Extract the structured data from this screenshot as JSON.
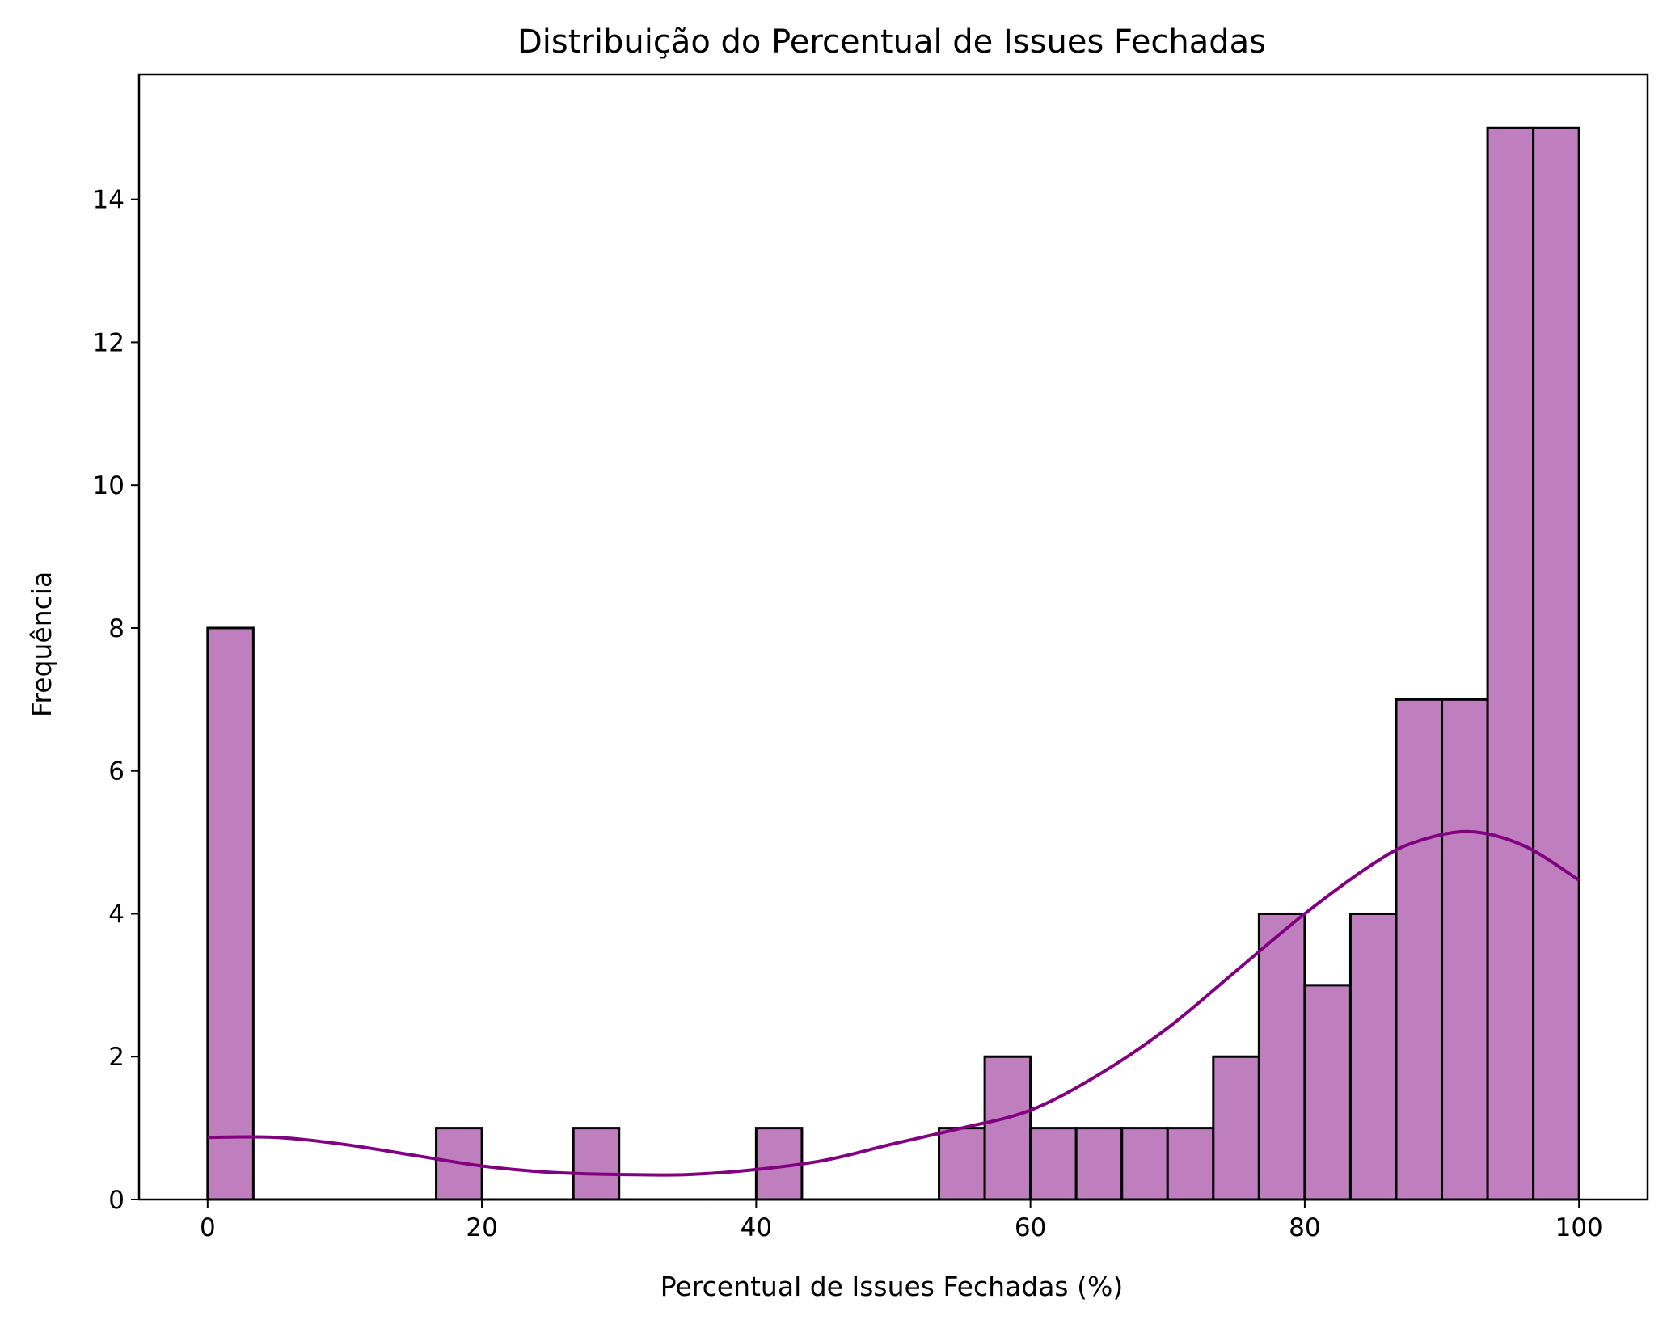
{
  "chart_data": {
    "type": "bar",
    "title": "Distribuição do Percentual de Issues Fechadas",
    "xlabel": "Percentual de Issues Fechadas (%)",
    "ylabel": "Frequência",
    "xlim": [
      -5,
      105
    ],
    "ylim": [
      0,
      15.75
    ],
    "x_ticks": [
      0,
      20,
      40,
      60,
      80,
      100
    ],
    "y_ticks": [
      0,
      2,
      4,
      6,
      8,
      10,
      12,
      14
    ],
    "bin_edges": [
      0,
      3.333,
      6.667,
      10,
      13.333,
      16.667,
      20,
      23.333,
      26.667,
      30,
      33.333,
      36.667,
      40,
      43.333,
      46.667,
      50,
      53.333,
      56.667,
      60,
      63.333,
      66.667,
      70,
      73.333,
      76.667,
      80,
      83.333,
      86.667,
      90,
      93.333,
      96.667,
      100
    ],
    "values": [
      8,
      0,
      0,
      0,
      0,
      1,
      0,
      0,
      1,
      0,
      0,
      0,
      1,
      0,
      0,
      0,
      1,
      2,
      1,
      1,
      1,
      1,
      2,
      4,
      3,
      4,
      7,
      7,
      15,
      15
    ],
    "bar_color": "#bf7fbf",
    "edge_color": "#000000",
    "grid": false,
    "kde_curve": {
      "color": "#800080",
      "x": [
        0,
        5,
        10,
        15,
        20,
        25,
        30,
        35,
        40,
        45,
        50,
        55,
        60,
        65,
        70,
        75,
        80,
        85,
        88,
        92,
        96,
        100
      ],
      "y": [
        0.87,
        0.87,
        0.77,
        0.62,
        0.47,
        0.38,
        0.35,
        0.35,
        0.42,
        0.55,
        0.78,
        1.0,
        1.25,
        1.75,
        2.4,
        3.2,
        4.0,
        4.7,
        5.0,
        5.15,
        4.95,
        4.47
      ]
    }
  }
}
